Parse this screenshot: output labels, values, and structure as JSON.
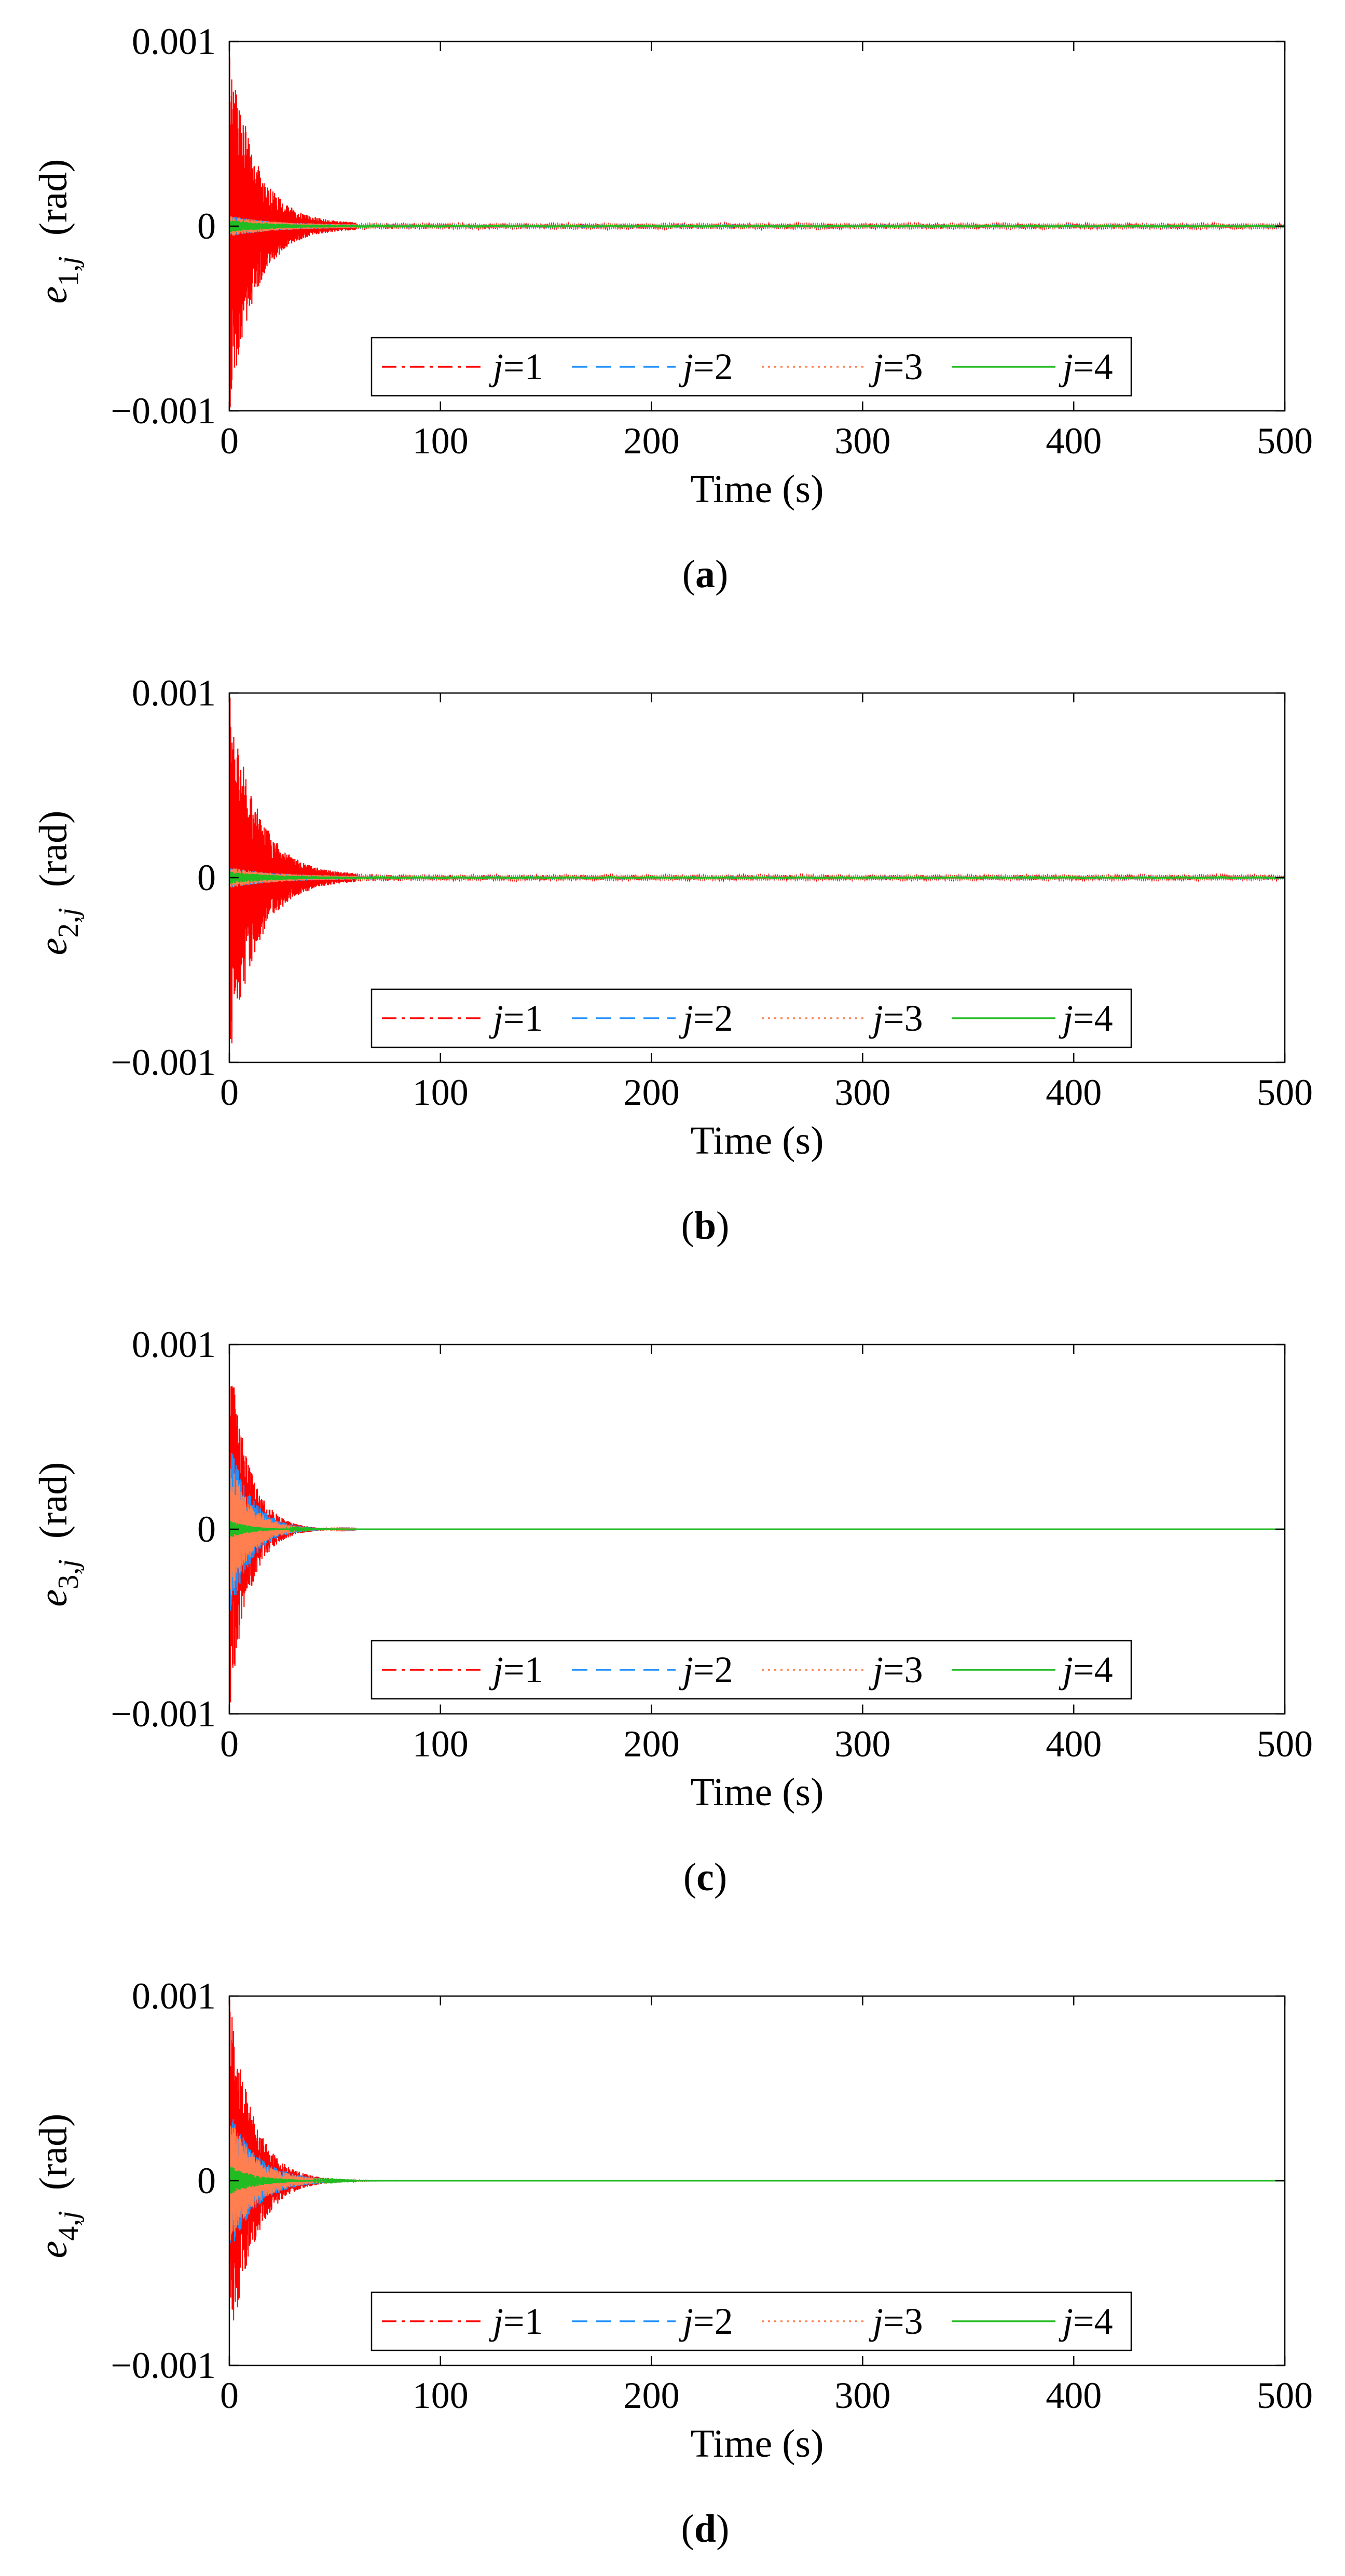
{
  "colors": {
    "j1": "#ff0000",
    "j2": "#1e90ff",
    "j3": "#ff7f50",
    "j4": "#22bb22",
    "axis": "#000000"
  },
  "chart_data": [
    {
      "type": "line",
      "caption": "(a)",
      "caption_letter": "a",
      "ylabel_main": "e",
      "ylabel_sub": "1,",
      "ylabel_j": "j",
      "ylabel_unit": "(rad)",
      "xlabel": "Time (s)",
      "xlim": [
        0,
        500
      ],
      "ylim": [
        -0.001,
        0.001
      ],
      "x_ticks": [
        "0",
        "100",
        "200",
        "300",
        "400",
        "500"
      ],
      "y_ticks": [
        "0.001",
        "0",
        "−0.001"
      ],
      "legend": [
        {
          "j": "j",
          "eq": "=1"
        },
        {
          "j": "j",
          "eq": "=2"
        },
        {
          "j": "j",
          "eq": "=3"
        },
        {
          "j": "j",
          "eq": "=4"
        }
      ],
      "series": [
        {
          "name": "j=1",
          "style": "dashdot",
          "peak": 0.001,
          "tau": 12,
          "floor": 1.5e-05
        },
        {
          "name": "j=2",
          "style": "dashed",
          "peak": 5e-05,
          "tau": 20,
          "floor": 8e-06
        },
        {
          "name": "j=3",
          "style": "dotted",
          "peak": 5e-05,
          "tau": 20,
          "floor": 8e-06
        },
        {
          "name": "j=4",
          "style": "solid",
          "peak": 3e-05,
          "tau": 20,
          "floor": 4e-06
        }
      ]
    },
    {
      "type": "line",
      "caption": "(b)",
      "caption_letter": "b",
      "ylabel_main": "e",
      "ylabel_sub": "2,",
      "ylabel_j": "j",
      "ylabel_unit": "(rad)",
      "xlabel": "Time (s)",
      "xlim": [
        0,
        500
      ],
      "ylim": [
        -0.001,
        0.001
      ],
      "x_ticks": [
        "0",
        "100",
        "200",
        "300",
        "400",
        "500"
      ],
      "y_ticks": [
        "0.001",
        "0",
        "−0.001"
      ],
      "legend": [
        {
          "j": "j",
          "eq": "=1"
        },
        {
          "j": "j",
          "eq": "=2"
        },
        {
          "j": "j",
          "eq": "=3"
        },
        {
          "j": "j",
          "eq": "=4"
        }
      ],
      "series": [
        {
          "name": "j=1",
          "style": "dashdot",
          "peak": 0.001,
          "tau": 13,
          "floor": 1.5e-05
        },
        {
          "name": "j=2",
          "style": "dashed",
          "peak": 5e-05,
          "tau": 20,
          "floor": 8e-06
        },
        {
          "name": "j=3",
          "style": "dotted",
          "peak": 5e-05,
          "tau": 20,
          "floor": 8e-06
        },
        {
          "name": "j=4",
          "style": "solid",
          "peak": 3e-05,
          "tau": 20,
          "floor": 4e-06
        }
      ]
    },
    {
      "type": "line",
      "caption": "(c)",
      "caption_letter": "c",
      "ylabel_main": "e",
      "ylabel_sub": "3,",
      "ylabel_j": "j",
      "ylabel_unit": "(rad)",
      "xlabel": "Time (s)",
      "xlim": [
        0,
        500
      ],
      "ylim": [
        -0.001,
        0.001
      ],
      "x_ticks": [
        "0",
        "100",
        "200",
        "300",
        "400",
        "500"
      ],
      "y_ticks": [
        "0.001",
        "0",
        "−0.001"
      ],
      "legend": [
        {
          "j": "j",
          "eq": "=1"
        },
        {
          "j": "j",
          "eq": "=2"
        },
        {
          "j": "j",
          "eq": "=3"
        },
        {
          "j": "j",
          "eq": "=4"
        }
      ],
      "series": [
        {
          "name": "j=1",
          "style": "dashdot",
          "peak": 0.001,
          "tau": 9,
          "floor": 0.0
        },
        {
          "name": "j=2",
          "style": "dashed",
          "peak": 0.0005,
          "tau": 10,
          "floor": 0.0
        },
        {
          "name": "j=3",
          "style": "dotted",
          "peak": 0.0004,
          "tau": 10,
          "floor": 0.0
        },
        {
          "name": "j=4",
          "style": "solid",
          "peak": 5e-05,
          "tau": 10,
          "floor": 0.0
        }
      ]
    },
    {
      "type": "line",
      "caption": "(d)",
      "caption_letter": "d",
      "ylabel_main": "e",
      "ylabel_sub": "4,",
      "ylabel_j": "j",
      "ylabel_unit": "(rad)",
      "xlabel": "Time (s)",
      "xlim": [
        0,
        500
      ],
      "ylim": [
        -0.001,
        0.001
      ],
      "x_ticks": [
        "0",
        "100",
        "200",
        "300",
        "400",
        "500"
      ],
      "y_ticks": [
        "0.001",
        "0",
        "−0.001"
      ],
      "legend": [
        {
          "j": "j",
          "eq": "=1"
        },
        {
          "j": "j",
          "eq": "=2"
        },
        {
          "j": "j",
          "eq": "=3"
        },
        {
          "j": "j",
          "eq": "=4"
        }
      ],
      "series": [
        {
          "name": "j=1",
          "style": "dashdot",
          "peak": 0.001,
          "tau": 11,
          "floor": 0.0
        },
        {
          "name": "j=2",
          "style": "dashed",
          "peak": 0.0004,
          "tau": 13,
          "floor": 0.0
        },
        {
          "name": "j=3",
          "style": "dotted",
          "peak": 0.00035,
          "tau": 13,
          "floor": 0.0
        },
        {
          "name": "j=4",
          "style": "solid",
          "peak": 8e-05,
          "tau": 13,
          "floor": 0.0
        }
      ]
    }
  ]
}
